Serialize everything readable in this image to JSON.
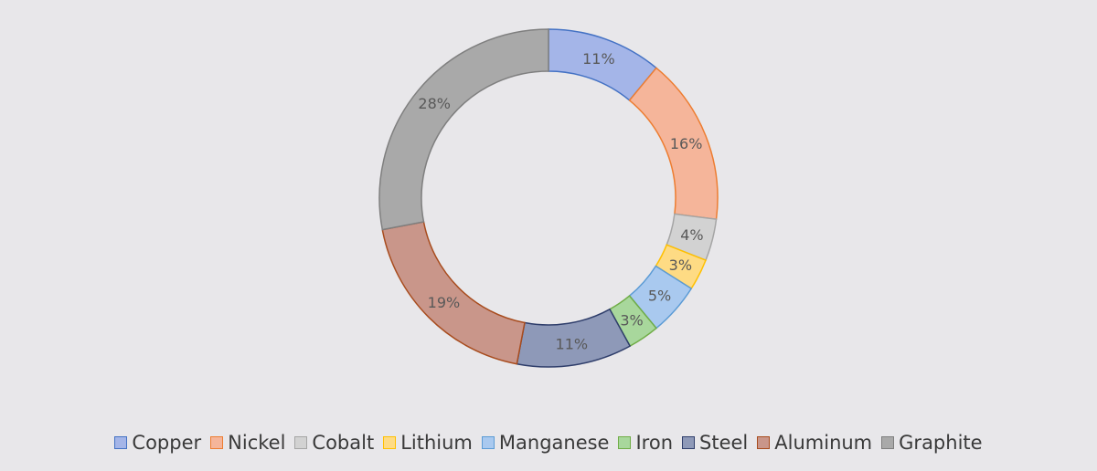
{
  "chart_data": {
    "type": "pie",
    "subtype": "donut",
    "title": "",
    "categories": [
      "Copper",
      "Nickel",
      "Cobalt",
      "Lithium",
      "Manganese",
      "Iron",
      "Steel",
      "Aluminum",
      "Graphite"
    ],
    "values": [
      11,
      16,
      4,
      3,
      5,
      3,
      11,
      19,
      28
    ],
    "labels": [
      "11%",
      "16%",
      "4%",
      "3%",
      "5%",
      "3%",
      "11%",
      "19%",
      "28%"
    ],
    "colors": [
      "#a4b5e8",
      "#f5b59a",
      "#d2d2d2",
      "#fedb84",
      "#a9c9ef",
      "#a8d79c",
      "#8e99b8",
      "#c9968a",
      "#a9a9a9"
    ],
    "edge_colors": [
      "#4472c4",
      "#ed7d31",
      "#a5a5a5",
      "#ffc000",
      "#5b9bd5",
      "#70ad47",
      "#2f3e6b",
      "#a84c1e",
      "#7f7f7f"
    ],
    "legend_position": "bottom"
  }
}
